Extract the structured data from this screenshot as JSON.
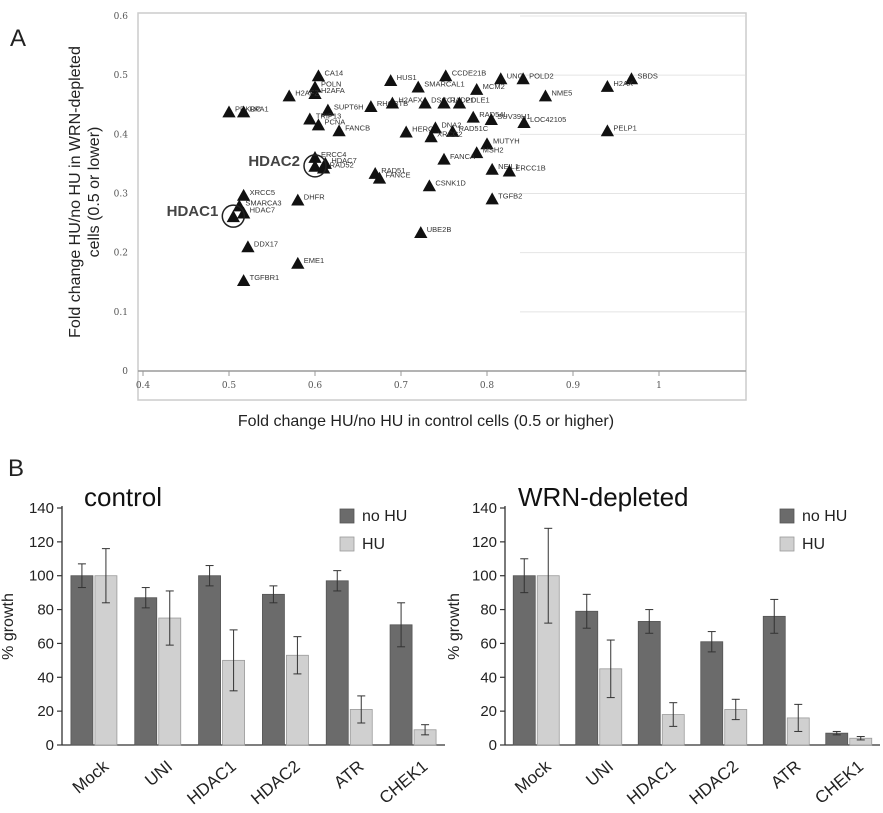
{
  "panels": {
    "a": "A",
    "b": "B"
  },
  "chart_data": [
    {
      "type": "scatter",
      "xlabel": "Fold change HU/no HU in control cells (0.5 or higher)",
      "ylabel": "Fold change HU/no HU in WRN-depleted cells (0.5 or lower)",
      "xlim": [
        0.4,
        1.1
      ],
      "ylim": [
        0,
        0.6
      ],
      "xticks": [
        "0.4",
        "0.5",
        "0.6",
        "0.7",
        "0.8",
        "0.9",
        "1"
      ],
      "yticks": [
        "0",
        "0.1",
        "0.2",
        "0.3",
        "0.4",
        "0.5",
        "0.6"
      ],
      "highlighted": [
        {
          "label": "HDAC1",
          "x": 0.505,
          "y": 0.26
        },
        {
          "label": "HDAC2",
          "x": 0.6,
          "y": 0.345
        }
      ],
      "points": [
        {
          "label": "CA14",
          "x": 0.604,
          "y": 0.498
        },
        {
          "label": "HUS1",
          "x": 0.688,
          "y": 0.49
        },
        {
          "label": "SMARCAL1",
          "x": 0.72,
          "y": 0.479
        },
        {
          "label": "CCDE21B",
          "x": 0.752,
          "y": 0.498
        },
        {
          "label": "UNG",
          "x": 0.816,
          "y": 0.493
        },
        {
          "label": "POLD2",
          "x": 0.842,
          "y": 0.493
        },
        {
          "label": "SBDS",
          "x": 0.968,
          "y": 0.493
        },
        {
          "label": "H2AX",
          "x": 0.94,
          "y": 0.48
        },
        {
          "label": "MCM2",
          "x": 0.788,
          "y": 0.475
        },
        {
          "label": "NME5",
          "x": 0.868,
          "y": 0.464
        },
        {
          "label": "POLN",
          "x": 0.6,
          "y": 0.479
        },
        {
          "label": "H2AFA",
          "x": 0.6,
          "y": 0.468
        },
        {
          "label": "H2AFZ",
          "x": 0.57,
          "y": 0.464
        },
        {
          "label": "SUPT6H",
          "x": 0.615,
          "y": 0.44
        },
        {
          "label": "RHOBTB",
          "x": 0.665,
          "y": 0.446
        },
        {
          "label": "H2AFX",
          "x": 0.69,
          "y": 0.452
        },
        {
          "label": "DSCC1",
          "x": 0.728,
          "y": 0.452
        },
        {
          "label": "RAD21",
          "x": 0.75,
          "y": 0.452
        },
        {
          "label": "POLE1",
          "x": 0.768,
          "y": 0.452
        },
        {
          "label": "TRIP13",
          "x": 0.594,
          "y": 0.425
        },
        {
          "label": "PCNA",
          "x": 0.604,
          "y": 0.415
        },
        {
          "label": "FANCB",
          "x": 0.628,
          "y": 0.405
        },
        {
          "label": "PRKDC",
          "x": 0.5,
          "y": 0.437
        },
        {
          "label": "RPA1",
          "x": 0.517,
          "y": 0.437
        },
        {
          "label": "HERC2",
          "x": 0.706,
          "y": 0.403
        },
        {
          "label": "DNA2",
          "x": 0.74,
          "y": 0.41
        },
        {
          "label": "RAD51C",
          "x": 0.76,
          "y": 0.404
        },
        {
          "label": "XRCC2",
          "x": 0.735,
          "y": 0.395
        },
        {
          "label": "RAD54L",
          "x": 0.784,
          "y": 0.428
        },
        {
          "label": "SUV39H1",
          "x": 0.805,
          "y": 0.424
        },
        {
          "label": "LOC42105",
          "x": 0.843,
          "y": 0.419
        },
        {
          "label": "PELP1",
          "x": 0.94,
          "y": 0.405
        },
        {
          "label": "MUTYH",
          "x": 0.8,
          "y": 0.383
        },
        {
          "label": "MSH2",
          "x": 0.788,
          "y": 0.368
        },
        {
          "label": "ERCC4",
          "x": 0.6,
          "y": 0.36
        },
        {
          "label": "HDAC7",
          "x": 0.612,
          "y": 0.35
        },
        {
          "label": "FANCA",
          "x": 0.75,
          "y": 0.357
        },
        {
          "label": "RAD52",
          "x": 0.61,
          "y": 0.342
        },
        {
          "label": "RAD51",
          "x": 0.67,
          "y": 0.333
        },
        {
          "label": "FANCE",
          "x": 0.675,
          "y": 0.325
        },
        {
          "label": "NEIL1",
          "x": 0.806,
          "y": 0.34
        },
        {
          "label": "ERCC1B",
          "x": 0.826,
          "y": 0.337
        },
        {
          "label": "CSNK1D",
          "x": 0.733,
          "y": 0.312
        },
        {
          "label": "TGFB2",
          "x": 0.806,
          "y": 0.29
        },
        {
          "label": "XRCC5",
          "x": 0.517,
          "y": 0.296
        },
        {
          "label": "DHFR",
          "x": 0.58,
          "y": 0.288
        },
        {
          "label": "SMARCA3",
          "x": 0.512,
          "y": 0.278
        },
        {
          "label": "HDAC7",
          "x": 0.517,
          "y": 0.266
        },
        {
          "label": "UBE2B",
          "x": 0.723,
          "y": 0.233
        },
        {
          "label": "DDX17",
          "x": 0.522,
          "y": 0.209
        },
        {
          "label": "EME1",
          "x": 0.58,
          "y": 0.181
        },
        {
          "label": "TGFBR1",
          "x": 0.517,
          "y": 0.152
        }
      ]
    },
    {
      "type": "bar",
      "title": "control",
      "ylabel": "% growth",
      "ylim": [
        0,
        140
      ],
      "yticks": [
        "0",
        "20",
        "40",
        "60",
        "80",
        "100",
        "120",
        "140"
      ],
      "categories": [
        "Mock",
        "UNI",
        "HDAC1",
        "HDAC2",
        "ATR",
        "CHEK1"
      ],
      "series": [
        {
          "name": "no HU",
          "color": "#6b6b6b",
          "values": [
            100,
            87,
            100,
            89,
            97,
            71
          ],
          "errors": [
            7,
            6,
            6,
            5,
            6,
            13
          ]
        },
        {
          "name": "HU",
          "color": "#d0d0d0",
          "values": [
            100,
            75,
            50,
            53,
            21,
            9
          ],
          "errors": [
            16,
            16,
            18,
            11,
            8,
            3
          ]
        }
      ]
    },
    {
      "type": "bar",
      "title": "WRN-depleted",
      "ylabel": "% growth",
      "ylim": [
        0,
        140
      ],
      "yticks": [
        "0",
        "20",
        "40",
        "60",
        "80",
        "100",
        "120",
        "140"
      ],
      "categories": [
        "Mock",
        "UNI",
        "HDAC1",
        "HDAC2",
        "ATR",
        "CHEK1"
      ],
      "series": [
        {
          "name": "no HU",
          "color": "#6b6b6b",
          "values": [
            100,
            79,
            73,
            61,
            76,
            7
          ],
          "errors": [
            10,
            10,
            7,
            6,
            10,
            1
          ]
        },
        {
          "name": "HU",
          "color": "#d0d0d0",
          "values": [
            100,
            45,
            18,
            21,
            16,
            4
          ],
          "errors": [
            28,
            17,
            7,
            6,
            8,
            1
          ]
        }
      ]
    }
  ]
}
